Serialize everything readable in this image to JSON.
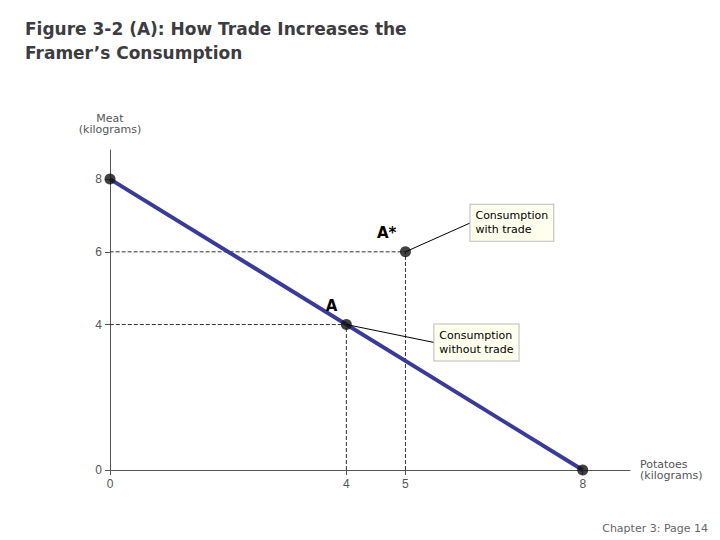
{
  "chart_data": {
    "type": "line",
    "title": "Figure 3-2 (A): How Trade Increases the\nFramer’s Consumption",
    "x_label": "Potatoes\n(kilograms)",
    "y_label": "Meat\n(kilograms)",
    "series": [
      {
        "type": "line",
        "line_style": "solid",
        "color": "#3A3A9A",
        "x": [
          0,
          8
        ],
        "values": [
          8,
          0
        ]
      },
      {
        "type": "line",
        "line_style": "dashed",
        "color": "#333333",
        "x": [
          4,
          4,
          0
        ],
        "values": [
          0,
          4,
          4
        ]
      },
      {
        "type": "line",
        "line_style": "dashed",
        "color": "#333333",
        "x": [
          5,
          5,
          0
        ],
        "values": [
          0,
          6,
          6
        ]
      },
      {
        "type": "scatter",
        "color": "#111111",
        "x": [
          4,
          5,
          8,
          0
        ],
        "values": [
          4,
          6,
          0,
          8
        ]
      }
    ],
    "point_labels": [
      {
        "text": "A",
        "x": 4,
        "y": 4
      },
      {
        "text": "A*",
        "x": 5,
        "y": 6
      }
    ],
    "annotations": [
      {
        "text": "Consumption\nwith trade",
        "x": 5,
        "y": 6
      },
      {
        "text": "Consumption\nwithout trade",
        "x": 4,
        "y": 4
      }
    ],
    "footnote": "Chapter 3: Page 14",
    "xlim": [
      0,
      8.8
    ],
    "ylim": [
      0,
      8.8
    ],
    "xticks": [
      0,
      4,
      5,
      8
    ],
    "yticks": [
      0,
      4,
      6,
      8
    ],
    "grid": false
  }
}
